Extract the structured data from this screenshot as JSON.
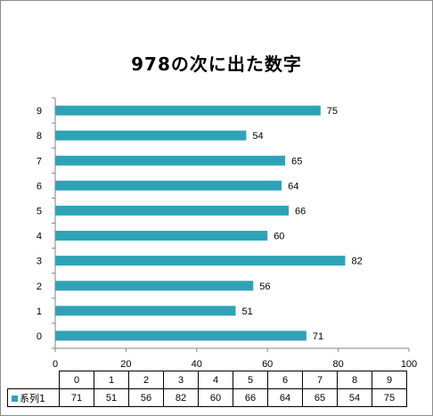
{
  "chart_data": {
    "type": "bar",
    "orientation": "horizontal",
    "title": "978の次に出た数字",
    "categories": [
      "0",
      "1",
      "2",
      "3",
      "4",
      "5",
      "6",
      "7",
      "8",
      "9"
    ],
    "series": [
      {
        "name": "系列1",
        "values": [
          71,
          51,
          56,
          82,
          60,
          66,
          64,
          65,
          54,
          75
        ],
        "color": "#2ea3b7"
      }
    ],
    "xlim": [
      0,
      100
    ],
    "x_ticks": [
      "0",
      "20",
      "40",
      "60",
      "80",
      "100"
    ],
    "grid": false,
    "data_labels": true,
    "legend": "data-table"
  }
}
